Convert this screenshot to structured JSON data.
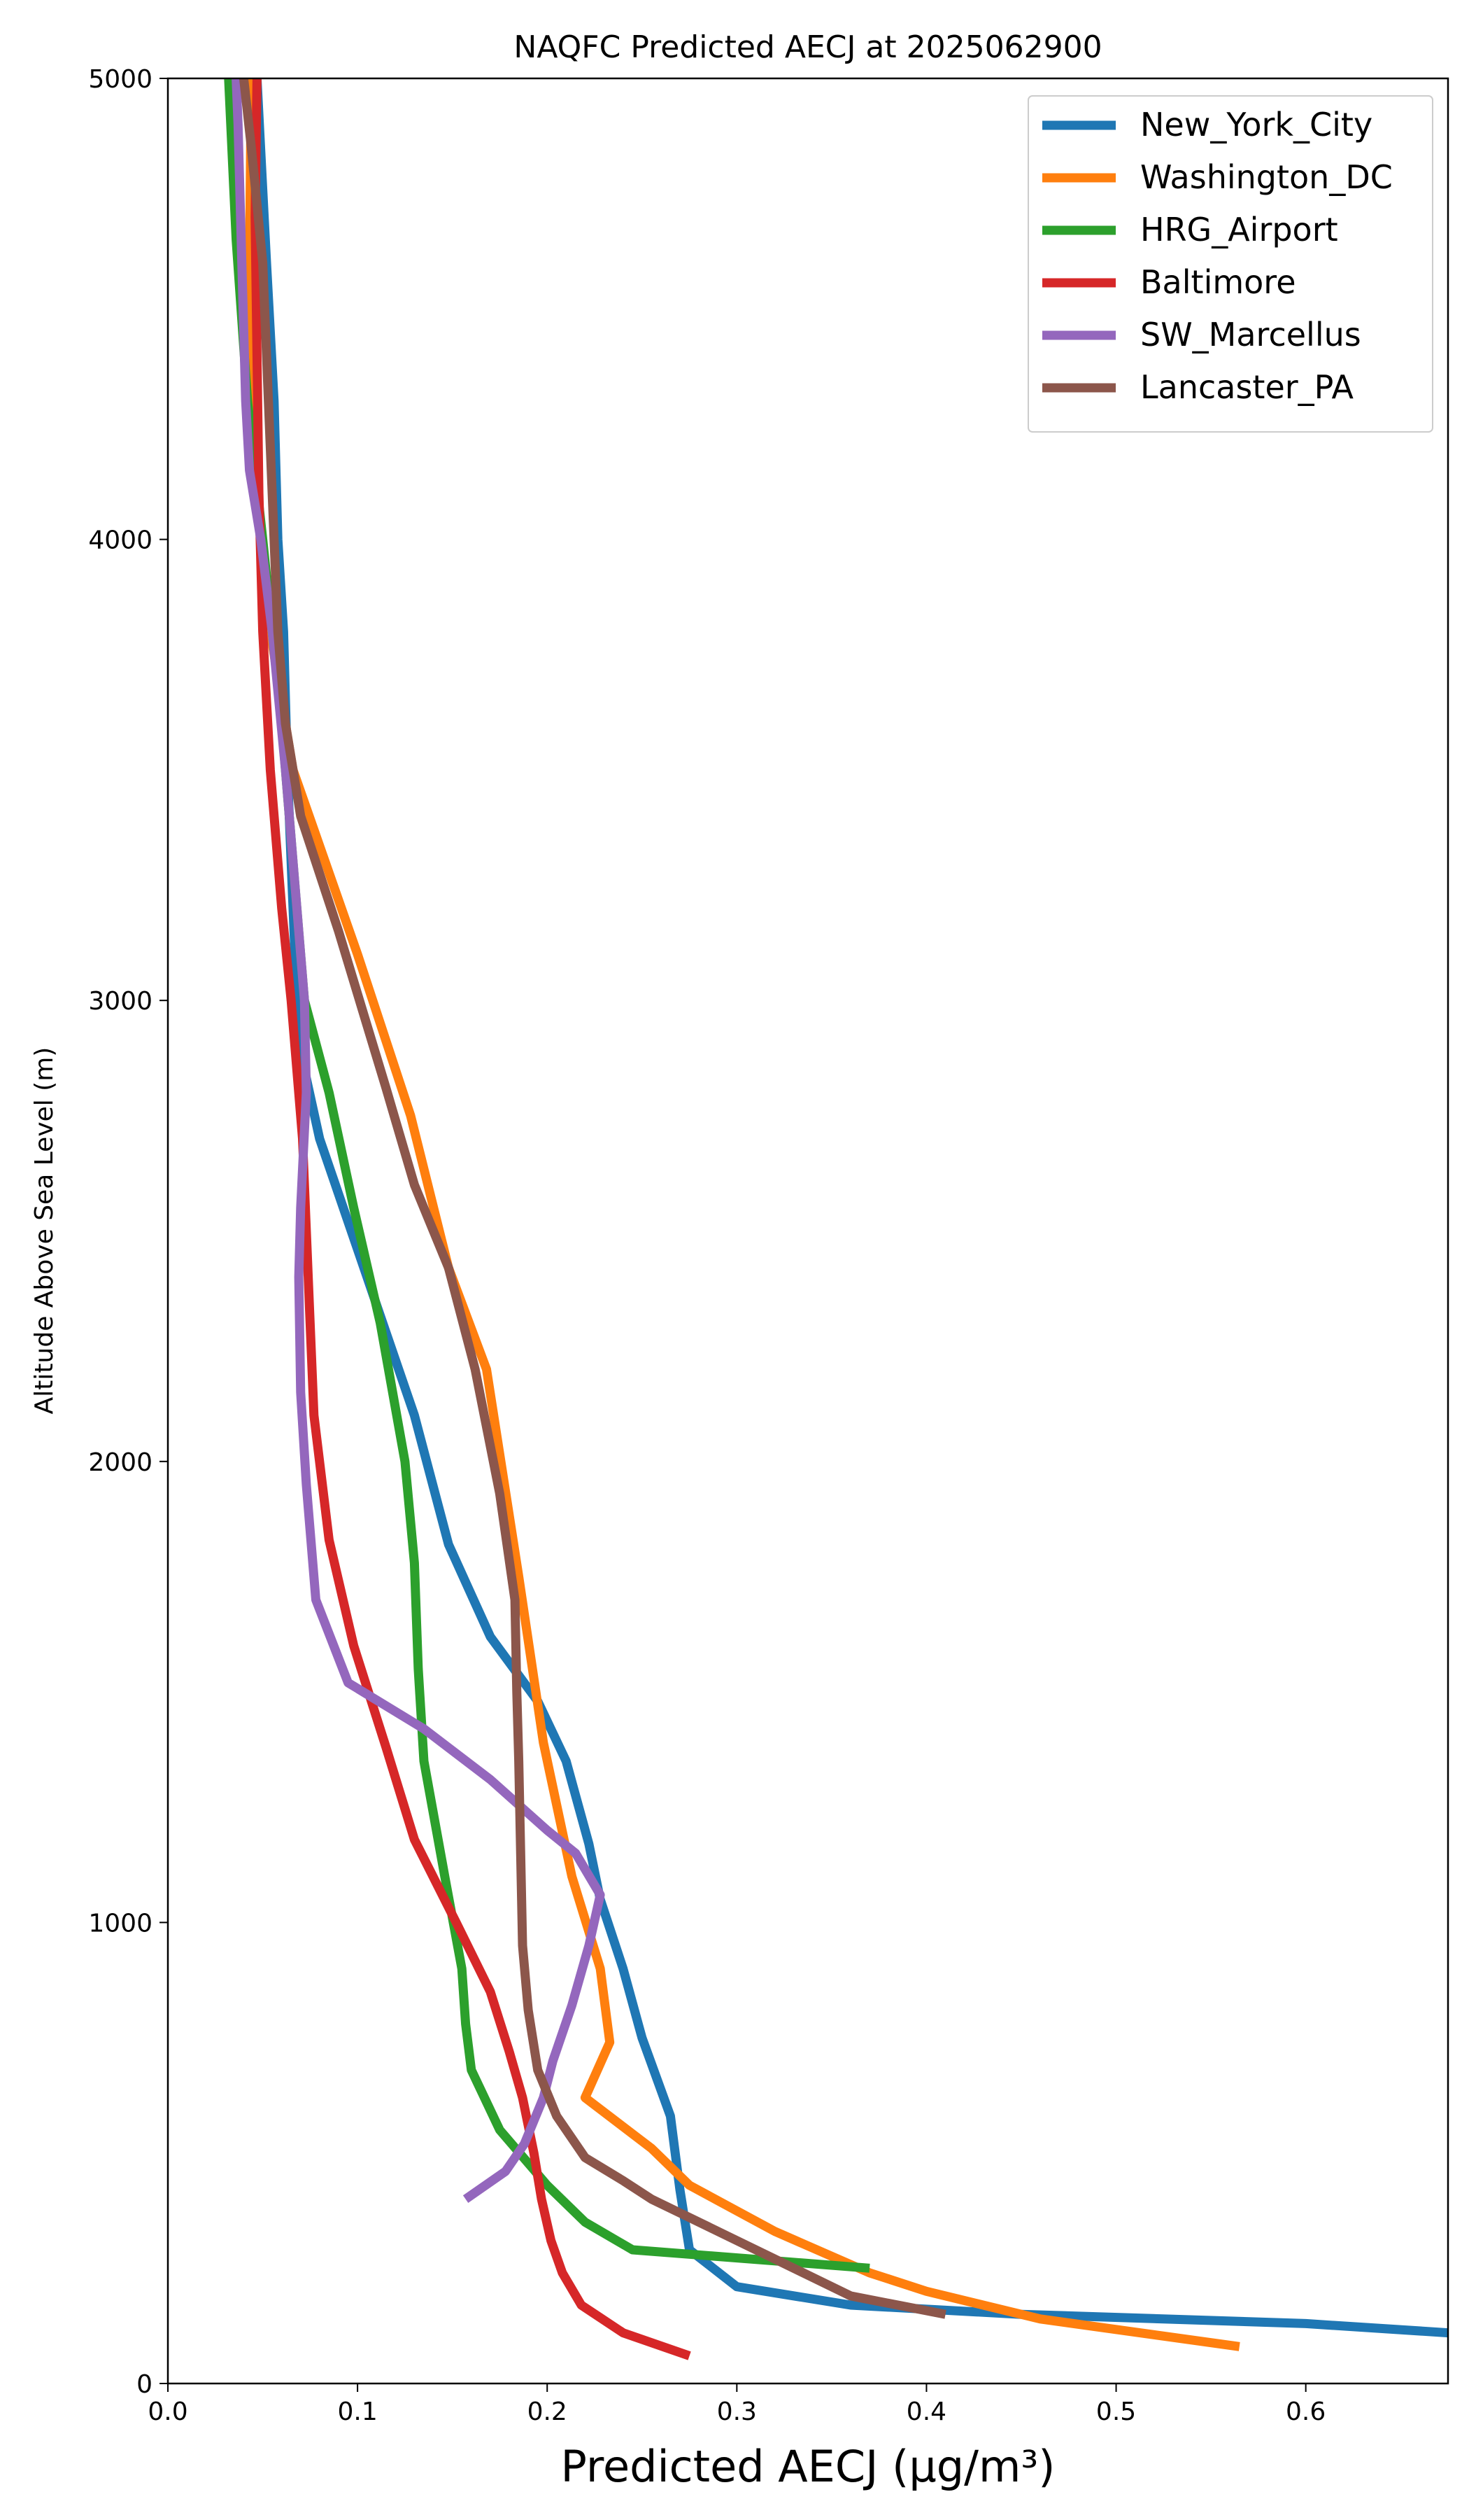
{
  "chart_data": {
    "type": "line",
    "title": "NAQFC Predicted AECJ at 2025062900",
    "xlabel": "Predicted AECJ (μg/m³)",
    "ylabel": "Altitude Above Sea Level (m)",
    "xlim": [
      0,
      0.675
    ],
    "ylim": [
      0,
      5000
    ],
    "xticks": [
      "0.0",
      "0.1",
      "0.2",
      "0.3",
      "0.4",
      "0.5",
      "0.6"
    ],
    "yticks": [
      "0",
      "1000",
      "2000",
      "3000",
      "4000",
      "5000"
    ],
    "grid": false,
    "legend_position": "top-right",
    "series": [
      {
        "name": "New_York_City",
        "color": "#1f77b4",
        "points": [
          [
            0.675,
            110
          ],
          [
            0.6,
            130
          ],
          [
            0.45,
            150
          ],
          [
            0.36,
            170
          ],
          [
            0.3,
            210
          ],
          [
            0.275,
            290
          ],
          [
            0.27,
            420
          ],
          [
            0.265,
            580
          ],
          [
            0.25,
            750
          ],
          [
            0.24,
            900
          ],
          [
            0.228,
            1050
          ],
          [
            0.222,
            1170
          ],
          [
            0.21,
            1350
          ],
          [
            0.195,
            1480
          ],
          [
            0.17,
            1620
          ],
          [
            0.148,
            1820
          ],
          [
            0.13,
            2100
          ],
          [
            0.105,
            2400
          ],
          [
            0.08,
            2700
          ],
          [
            0.072,
            2850
          ],
          [
            0.068,
            3000
          ],
          [
            0.065,
            3300
          ],
          [
            0.063,
            3500
          ],
          [
            0.061,
            3800
          ],
          [
            0.058,
            4000
          ],
          [
            0.056,
            4300
          ],
          [
            0.052,
            4600
          ],
          [
            0.047,
            5000
          ]
        ]
      },
      {
        "name": "Washington_DC",
        "color": "#ff7f0e",
        "points": [
          [
            0.565,
            80
          ],
          [
            0.46,
            140
          ],
          [
            0.4,
            200
          ],
          [
            0.37,
            240
          ],
          [
            0.32,
            330
          ],
          [
            0.275,
            430
          ],
          [
            0.255,
            510
          ],
          [
            0.22,
            620
          ],
          [
            0.233,
            740
          ],
          [
            0.228,
            900
          ],
          [
            0.213,
            1100
          ],
          [
            0.198,
            1390
          ],
          [
            0.185,
            1750
          ],
          [
            0.168,
            2200
          ],
          [
            0.148,
            2420
          ],
          [
            0.128,
            2750
          ],
          [
            0.1,
            3100
          ],
          [
            0.066,
            3500
          ],
          [
            0.052,
            3850
          ],
          [
            0.045,
            4200
          ],
          [
            0.043,
            4600
          ],
          [
            0.044,
            5000
          ]
        ]
      },
      {
        "name": "HRG_Airport",
        "color": "#2ca02c",
        "points": [
          [
            0.37,
            250
          ],
          [
            0.245,
            290
          ],
          [
            0.22,
            350
          ],
          [
            0.2,
            430
          ],
          [
            0.175,
            550
          ],
          [
            0.16,
            680
          ],
          [
            0.157,
            780
          ],
          [
            0.155,
            900
          ],
          [
            0.146,
            1100
          ],
          [
            0.135,
            1350
          ],
          [
            0.132,
            1550
          ],
          [
            0.13,
            1780
          ],
          [
            0.125,
            2000
          ],
          [
            0.112,
            2300
          ],
          [
            0.098,
            2550
          ],
          [
            0.085,
            2800
          ],
          [
            0.072,
            3000
          ],
          [
            0.066,
            3300
          ],
          [
            0.06,
            3600
          ],
          [
            0.05,
            4000
          ],
          [
            0.042,
            4300
          ],
          [
            0.036,
            4650
          ],
          [
            0.032,
            5000
          ]
        ]
      },
      {
        "name": "Baltimore",
        "color": "#d62728",
        "points": [
          [
            0.275,
            60
          ],
          [
            0.24,
            110
          ],
          [
            0.218,
            170
          ],
          [
            0.208,
            240
          ],
          [
            0.202,
            310
          ],
          [
            0.197,
            400
          ],
          [
            0.193,
            500
          ],
          [
            0.187,
            620
          ],
          [
            0.18,
            720
          ],
          [
            0.17,
            850
          ],
          [
            0.152,
            1000
          ],
          [
            0.13,
            1180
          ],
          [
            0.115,
            1380
          ],
          [
            0.098,
            1600
          ],
          [
            0.085,
            1830
          ],
          [
            0.077,
            2100
          ],
          [
            0.074,
            2400
          ],
          [
            0.071,
            2700
          ],
          [
            0.065,
            3000
          ],
          [
            0.06,
            3200
          ],
          [
            0.054,
            3500
          ],
          [
            0.05,
            3800
          ],
          [
            0.048,
            4100
          ],
          [
            0.047,
            4400
          ],
          [
            0.046,
            4700
          ],
          [
            0.047,
            5000
          ]
        ]
      },
      {
        "name": "SW_Marcellus",
        "color": "#9467bd",
        "points": [
          [
            0.157,
            400
          ],
          [
            0.178,
            460
          ],
          [
            0.188,
            520
          ],
          [
            0.198,
            620
          ],
          [
            0.203,
            700
          ],
          [
            0.213,
            820
          ],
          [
            0.222,
            950
          ],
          [
            0.228,
            1060
          ],
          [
            0.215,
            1150
          ],
          [
            0.2,
            1200
          ],
          [
            0.17,
            1310
          ],
          [
            0.135,
            1420
          ],
          [
            0.095,
            1520
          ],
          [
            0.078,
            1700
          ],
          [
            0.073,
            1950
          ],
          [
            0.07,
            2150
          ],
          [
            0.069,
            2400
          ],
          [
            0.07,
            2550
          ],
          [
            0.073,
            2800
          ],
          [
            0.072,
            3000
          ],
          [
            0.068,
            3200
          ],
          [
            0.062,
            3500
          ],
          [
            0.055,
            3800
          ],
          [
            0.049,
            4000
          ],
          [
            0.043,
            4150
          ],
          [
            0.041,
            4300
          ],
          [
            0.039,
            4600
          ],
          [
            0.037,
            4900
          ],
          [
            0.036,
            5000
          ]
        ]
      },
      {
        "name": "Lancaster_PA",
        "color": "#8c564b",
        "points": [
          [
            0.41,
            150
          ],
          [
            0.36,
            190
          ],
          [
            0.34,
            230
          ],
          [
            0.3,
            310
          ],
          [
            0.27,
            370
          ],
          [
            0.255,
            400
          ],
          [
            0.24,
            440
          ],
          [
            0.22,
            490
          ],
          [
            0.205,
            580
          ],
          [
            0.195,
            680
          ],
          [
            0.19,
            810
          ],
          [
            0.187,
            950
          ],
          [
            0.186,
            1150
          ],
          [
            0.185,
            1350
          ],
          [
            0.184,
            1500
          ],
          [
            0.183,
            1700
          ],
          [
            0.175,
            1930
          ],
          [
            0.162,
            2200
          ],
          [
            0.148,
            2420
          ],
          [
            0.13,
            2600
          ],
          [
            0.115,
            2810
          ],
          [
            0.09,
            3150
          ],
          [
            0.07,
            3400
          ],
          [
            0.062,
            3600
          ],
          [
            0.058,
            3800
          ],
          [
            0.055,
            4100
          ],
          [
            0.052,
            4400
          ],
          [
            0.05,
            4600
          ],
          [
            0.044,
            4850
          ],
          [
            0.04,
            5000
          ]
        ]
      }
    ]
  }
}
